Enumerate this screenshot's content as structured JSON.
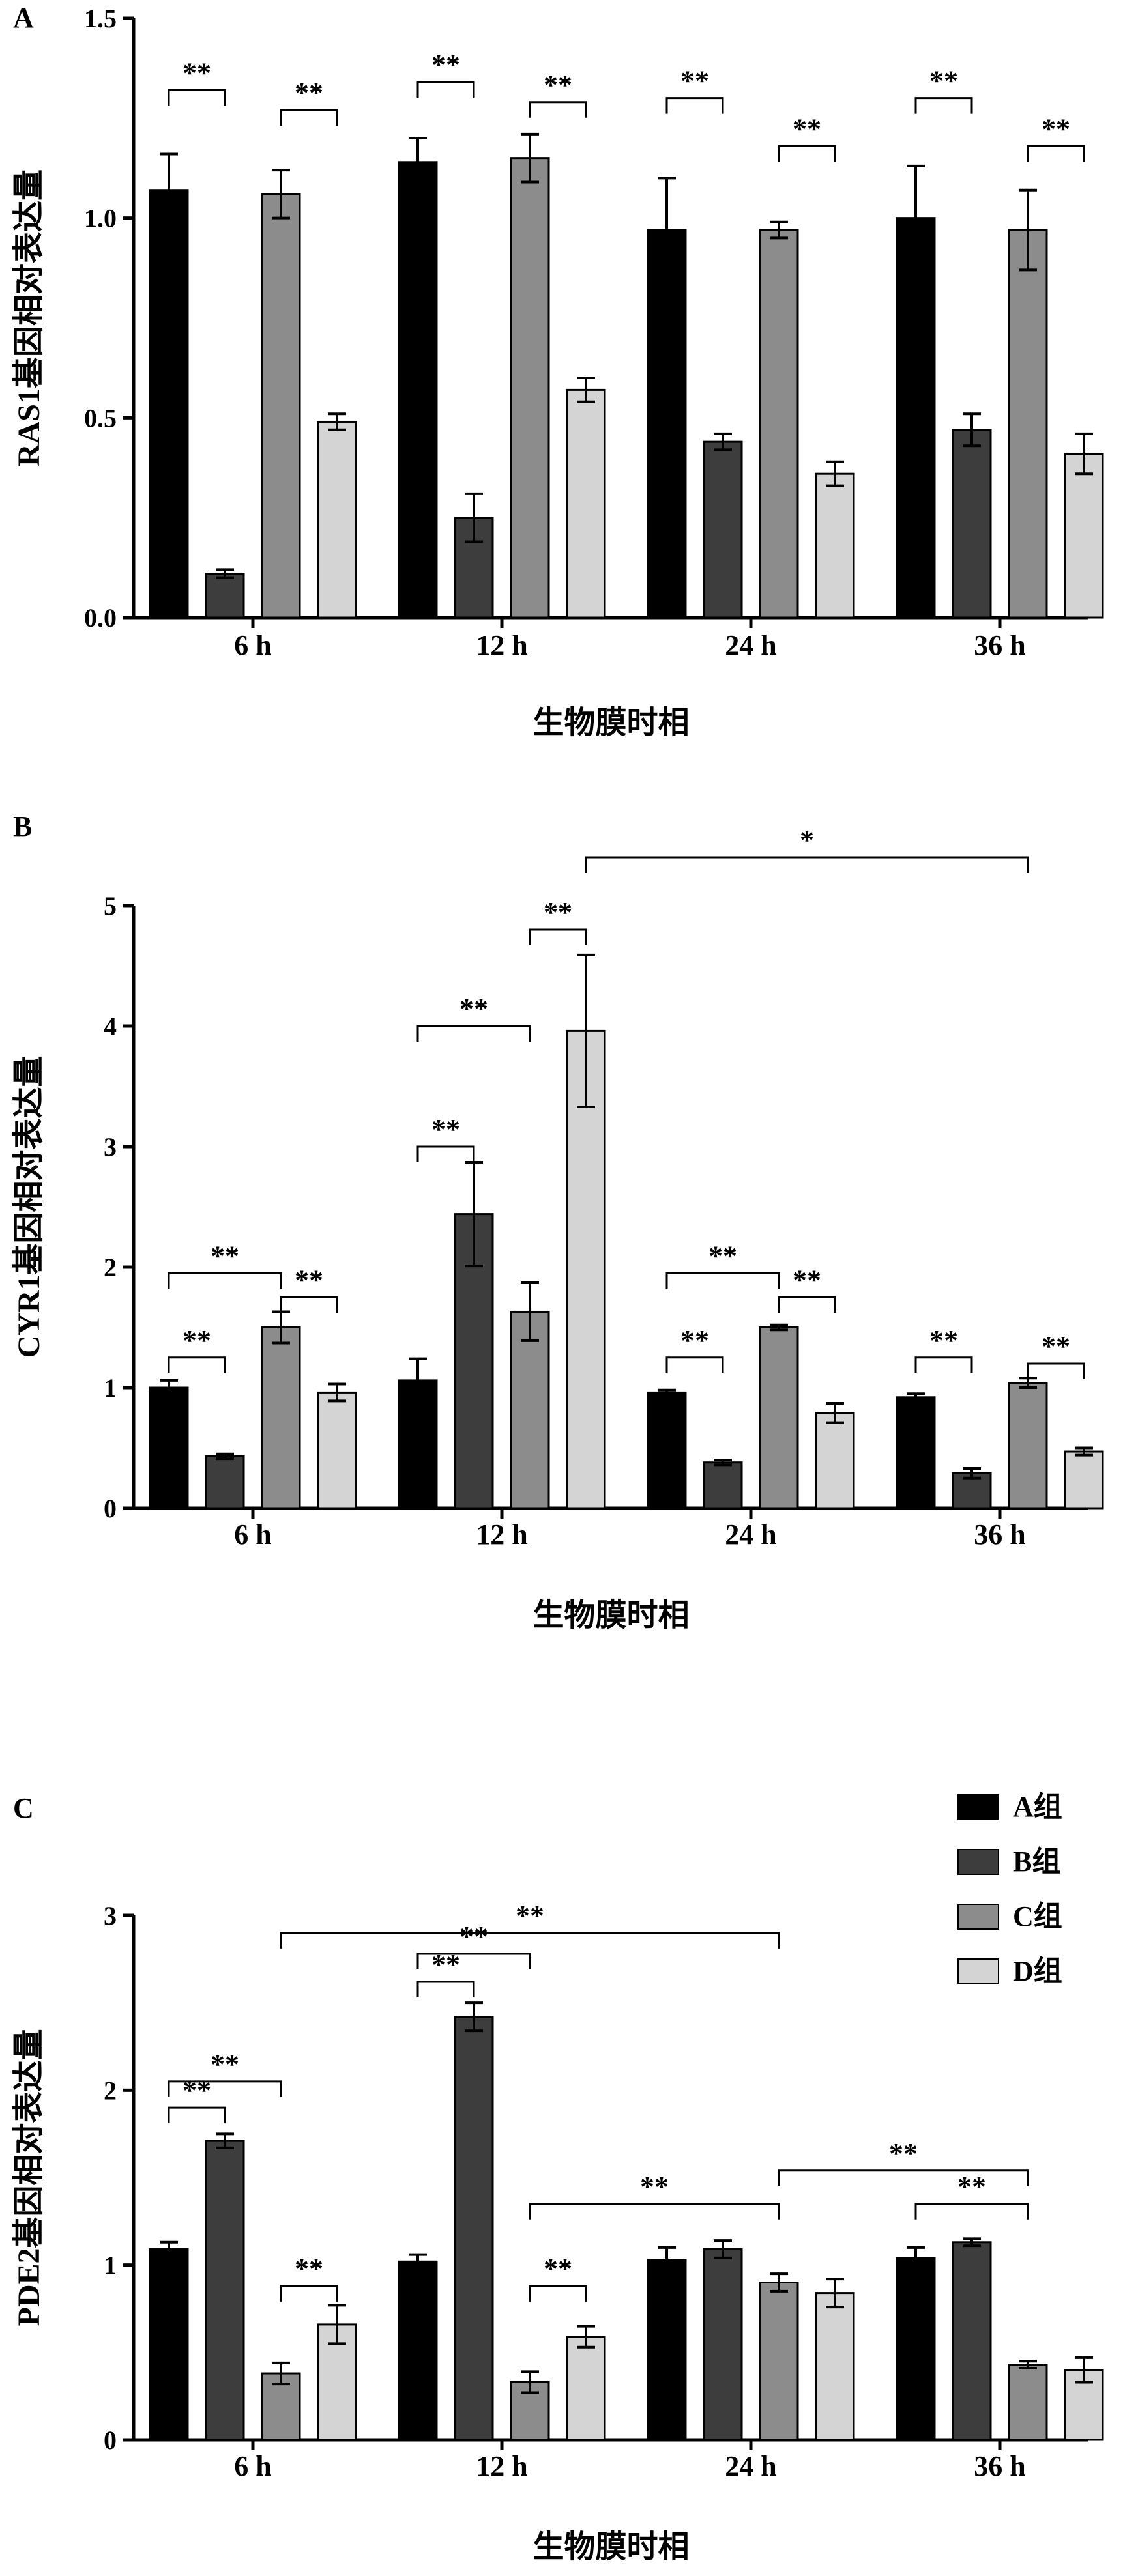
{
  "colors": {
    "A组": "#000000",
    "B组": "#3d3d3d",
    "C组": "#8c8c8c",
    "D组": "#d4d4d4",
    "axis": "#000000"
  },
  "legend": [
    "A组",
    "B组",
    "C组",
    "D组"
  ],
  "chart_data": [
    {
      "panel": "A",
      "type": "bar",
      "xlabel": "生物膜时相",
      "ylabel": "RAS1基因相对表达量",
      "categories": [
        "6 h",
        "12 h",
        "24 h",
        "36 h"
      ],
      "ylim": [
        0,
        1.5
      ],
      "yticks": [
        "0.0",
        "0.5",
        "1.0",
        "1.5"
      ],
      "series": [
        {
          "name": "A组",
          "values": [
            1.07,
            1.14,
            0.97,
            1.0
          ],
          "errors": [
            0.09,
            0.06,
            0.13,
            0.13
          ]
        },
        {
          "name": "B组",
          "values": [
            0.11,
            0.25,
            0.44,
            0.47
          ],
          "errors": [
            0.01,
            0.06,
            0.02,
            0.04
          ]
        },
        {
          "name": "C组",
          "values": [
            1.06,
            1.15,
            0.97,
            0.97
          ],
          "errors": [
            0.06,
            0.06,
            0.02,
            0.1
          ]
        },
        {
          "name": "D组",
          "values": [
            0.49,
            0.57,
            0.36,
            0.41
          ],
          "errors": [
            0.02,
            0.03,
            0.03,
            0.05
          ]
        }
      ],
      "significance": [
        {
          "label": "**",
          "from": [
            0,
            0
          ],
          "to": [
            0,
            1
          ]
        },
        {
          "label": "**",
          "from": [
            0,
            2
          ],
          "to": [
            0,
            3
          ]
        },
        {
          "label": "**",
          "from": [
            1,
            0
          ],
          "to": [
            1,
            1
          ]
        },
        {
          "label": "**",
          "from": [
            1,
            2
          ],
          "to": [
            1,
            3
          ]
        },
        {
          "label": "**",
          "from": [
            2,
            0
          ],
          "to": [
            2,
            1
          ]
        },
        {
          "label": "**",
          "from": [
            2,
            2
          ],
          "to": [
            2,
            3
          ]
        },
        {
          "label": "**",
          "from": [
            3,
            0
          ],
          "to": [
            3,
            1
          ]
        },
        {
          "label": "**",
          "from": [
            3,
            2
          ],
          "to": [
            3,
            3
          ]
        }
      ]
    },
    {
      "panel": "B",
      "type": "bar",
      "xlabel": "生物膜时相",
      "ylabel": "CYR1基因相对表达量",
      "categories": [
        "6 h",
        "12 h",
        "24 h",
        "36 h"
      ],
      "ylim": [
        0,
        5
      ],
      "yticks": [
        "0",
        "1",
        "2",
        "3",
        "4",
        "5"
      ],
      "series": [
        {
          "name": "A组",
          "values": [
            1.0,
            1.06,
            0.96,
            0.92
          ],
          "errors": [
            0.06,
            0.18,
            0.02,
            0.03
          ]
        },
        {
          "name": "B组",
          "values": [
            0.43,
            2.44,
            0.38,
            0.29
          ],
          "errors": [
            0.02,
            0.43,
            0.02,
            0.04
          ]
        },
        {
          "name": "C组",
          "values": [
            1.5,
            1.63,
            1.5,
            1.04
          ],
          "errors": [
            0.13,
            0.24,
            0.02,
            0.04
          ]
        },
        {
          "name": "D组",
          "values": [
            0.96,
            3.96,
            0.79,
            0.47
          ],
          "errors": [
            0.07,
            0.63,
            0.08,
            0.03
          ]
        }
      ],
      "significance": [
        {
          "label": "**",
          "from": [
            0,
            0
          ],
          "to": [
            0,
            1
          ]
        },
        {
          "label": "**",
          "from": [
            0,
            0
          ],
          "to": [
            0,
            2
          ]
        },
        {
          "label": "**",
          "from": [
            0,
            2
          ],
          "to": [
            0,
            3
          ]
        },
        {
          "label": "**",
          "from": [
            1,
            0
          ],
          "to": [
            1,
            1
          ]
        },
        {
          "label": "**",
          "from": [
            1,
            0
          ],
          "to": [
            1,
            2
          ]
        },
        {
          "label": "**",
          "from": [
            1,
            2
          ],
          "to": [
            1,
            3
          ]
        },
        {
          "label": "*",
          "from": [
            1,
            3
          ],
          "to": [
            3,
            2
          ]
        },
        {
          "label": "**",
          "from": [
            2,
            0
          ],
          "to": [
            2,
            1
          ]
        },
        {
          "label": "**",
          "from": [
            2,
            0
          ],
          "to": [
            2,
            2
          ]
        },
        {
          "label": "**",
          "from": [
            2,
            2
          ],
          "to": [
            2,
            3
          ]
        },
        {
          "label": "**",
          "from": [
            3,
            0
          ],
          "to": [
            3,
            1
          ]
        },
        {
          "label": "**",
          "from": [
            3,
            2
          ],
          "to": [
            3,
            3
          ]
        }
      ]
    },
    {
      "panel": "C",
      "type": "bar",
      "xlabel": "生物膜时相",
      "ylabel": "PDE2基因相对表达量",
      "categories": [
        "6 h",
        "12 h",
        "24 h",
        "36 h"
      ],
      "ylim": [
        0,
        3
      ],
      "yticks": [
        "0",
        "1",
        "2",
        "3"
      ],
      "legend_position": "top-right",
      "series": [
        {
          "name": "A组",
          "values": [
            1.09,
            1.02,
            1.03,
            1.04
          ],
          "errors": [
            0.04,
            0.04,
            0.07,
            0.06
          ]
        },
        {
          "name": "B组",
          "values": [
            1.71,
            2.42,
            1.09,
            1.13
          ],
          "errors": [
            0.04,
            0.08,
            0.05,
            0.02
          ]
        },
        {
          "name": "C组",
          "values": [
            0.38,
            0.33,
            0.9,
            0.43
          ],
          "errors": [
            0.06,
            0.06,
            0.05,
            0.02
          ]
        },
        {
          "name": "D组",
          "values": [
            0.66,
            0.59,
            0.84,
            0.4
          ],
          "errors": [
            0.11,
            0.06,
            0.08,
            0.07
          ]
        }
      ],
      "significance": [
        {
          "label": "**",
          "from": [
            0,
            0
          ],
          "to": [
            0,
            1
          ]
        },
        {
          "label": "**",
          "from": [
            0,
            0
          ],
          "to": [
            0,
            2
          ]
        },
        {
          "label": "**",
          "from": [
            0,
            2
          ],
          "to": [
            0,
            3
          ]
        },
        {
          "label": "**",
          "from": [
            0,
            2
          ],
          "to": [
            2,
            2
          ]
        },
        {
          "label": "**",
          "from": [
            1,
            0
          ],
          "to": [
            1,
            1
          ]
        },
        {
          "label": "**",
          "from": [
            1,
            0
          ],
          "to": [
            1,
            2
          ]
        },
        {
          "label": "**",
          "from": [
            1,
            2
          ],
          "to": [
            1,
            3
          ]
        },
        {
          "label": "**",
          "from": [
            1,
            2
          ],
          "to": [
            2,
            2
          ]
        },
        {
          "label": "**",
          "from": [
            2,
            2
          ],
          "to": [
            3,
            2
          ]
        },
        {
          "label": "**",
          "from": [
            3,
            0
          ],
          "to": [
            3,
            2
          ]
        }
      ]
    }
  ]
}
